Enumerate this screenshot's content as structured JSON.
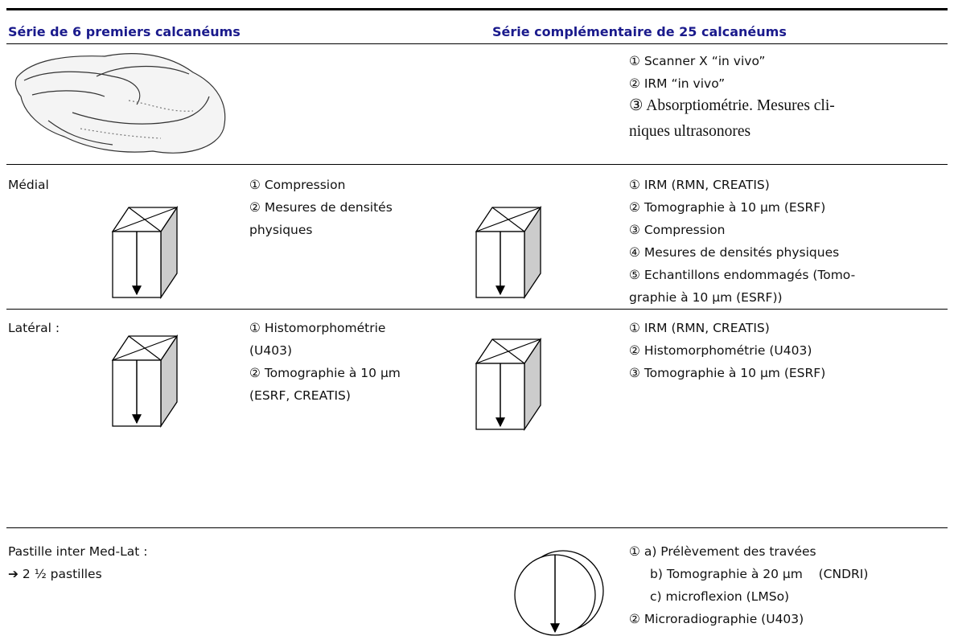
{
  "header": {
    "left": "Série de 6 premiers calcanéums",
    "right": "Série complémentaire de 25 calcanéums"
  },
  "intro": {
    "items": [
      "① Scanner X “in vivo”",
      "② IRM “in vivo”",
      "③ Absorptiométrie. Mesures cli-",
      "niques ultrasonores"
    ]
  },
  "rows": [
    {
      "label": "Médial",
      "left_items": [
        "① Compression",
        "② Mesures de densités",
        "physiques"
      ],
      "right_items": [
        "① IRM (RMN, CREATIS)",
        "② Tomographie à 10 µm (ESRF)",
        "③ Compression",
        "④ Mesures de densités physiques",
        "⑤ Echantillons endommagés (Tomo-",
        "graphie à 10 µm (ESRF))"
      ]
    },
    {
      "label": "Latéral :",
      "left_items": [
        "① Histomorphométrie",
        "(U403)",
        "② Tomographie à 10 µm",
        "(ESRF, CREATIS)"
      ],
      "right_items": [
        "① IRM (RMN, CREATIS)",
        "② Histomorphométrie (U403)",
        "③ Tomographie à 10 µm (ESRF)"
      ]
    },
    {
      "label": "Pastille inter Med-Lat :",
      "sublabel": "➔ 2 ½ pastilles",
      "right_items": [
        "① a) Prélèvement des travées",
        "b) Tomographie à 20 µm    (CNDRI)",
        "c) microflexion (LMSo)",
        "② Microradiographie (U403)"
      ]
    }
  ]
}
